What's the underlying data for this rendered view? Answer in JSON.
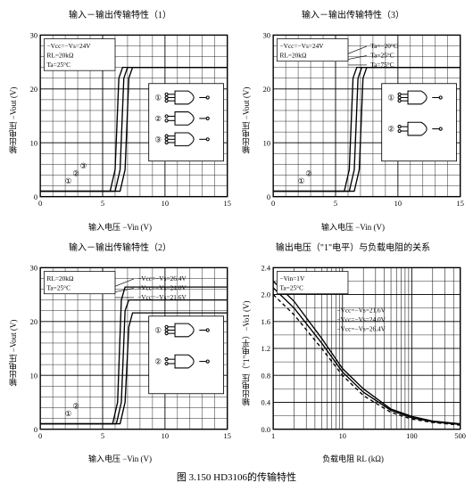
{
  "caption": "图 3.150   HD3106的传输特性",
  "panels": [
    {
      "title": "输入－输出传输特性（1）",
      "xlabel": "输入电压 −Vin (V)",
      "ylabel": "输出电压 −Vout (V)",
      "xlim": [
        0,
        15
      ],
      "xtick_step": 5,
      "ylim": [
        0,
        30
      ],
      "ytick_step": 10,
      "grid_color": "#000000",
      "axis_color": "#000000",
      "bg": "#ffffff",
      "cond_lines": [
        "−Vcc=−Vs=24V",
        "RL=20kΩ",
        "Ta=25°C"
      ],
      "notes": [
        "①",
        "②",
        "③"
      ],
      "curves": [
        {
          "label": "①",
          "pts": [
            [
              0,
              1
            ],
            [
              5.6,
              1
            ],
            [
              6.0,
              5
            ],
            [
              6.3,
              22
            ],
            [
              6.6,
              24
            ],
            [
              15,
              24
            ]
          ]
        },
        {
          "label": "②",
          "pts": [
            [
              0,
              1
            ],
            [
              6.0,
              1
            ],
            [
              6.4,
              5
            ],
            [
              6.7,
              22
            ],
            [
              7.0,
              24
            ],
            [
              15,
              24
            ]
          ]
        },
        {
          "label": "③",
          "pts": [
            [
              0,
              1
            ],
            [
              6.4,
              1
            ],
            [
              6.8,
              5
            ],
            [
              7.1,
              22
            ],
            [
              7.4,
              24
            ],
            [
              15,
              24
            ]
          ]
        }
      ],
      "gates": [
        {
          "type": "and3",
          "y": 22,
          "label": "①"
        },
        {
          "type": "andor",
          "y": 16,
          "label": "②"
        },
        {
          "type": "or3",
          "y": 10,
          "label": "③"
        }
      ]
    },
    {
      "title": "输入－输出传输特性（3）",
      "xlabel": "输入电压 −Vin (V)",
      "ylabel": "输出电压 −Vout (V)",
      "xlim": [
        0,
        15
      ],
      "xtick_step": 5,
      "ylim": [
        0,
        30
      ],
      "ytick_step": 10,
      "grid_color": "#000000",
      "axis_color": "#000000",
      "bg": "#ffffff",
      "cond_lines": [
        "−Vcc=−Vs=24V",
        "RL=20kΩ"
      ],
      "temp_lines": [
        "Ta=−20°C",
        "Ta=25°C",
        "Ta=75°C"
      ],
      "notes": [
        "①",
        "②"
      ],
      "curves": [
        {
          "label": "−20",
          "pts": [
            [
              0,
              1
            ],
            [
              5.7,
              1
            ],
            [
              6.1,
              5
            ],
            [
              6.4,
              22
            ],
            [
              6.7,
              24
            ],
            [
              15,
              24
            ]
          ]
        },
        {
          "label": "25",
          "pts": [
            [
              0,
              1
            ],
            [
              6.1,
              1
            ],
            [
              6.5,
              5
            ],
            [
              6.8,
              22
            ],
            [
              7.1,
              24
            ],
            [
              15,
              24
            ]
          ]
        },
        {
          "label": "75",
          "pts": [
            [
              0,
              1
            ],
            [
              6.5,
              1
            ],
            [
              6.9,
              5
            ],
            [
              7.2,
              22
            ],
            [
              7.5,
              24
            ],
            [
              15,
              24
            ]
          ]
        }
      ],
      "gates": [
        {
          "type": "and3",
          "y": 21,
          "label": "①"
        },
        {
          "type": "andor",
          "y": 15,
          "label": "②"
        }
      ]
    },
    {
      "title": "输入－输出传输特性（2）",
      "xlabel": "输入电压 −Vin (V)",
      "ylabel": "输出电压 −Vout (V)",
      "xlim": [
        0,
        15
      ],
      "xtick_step": 5,
      "ylim": [
        0,
        30
      ],
      "ytick_step": 10,
      "grid_color": "#000000",
      "axis_color": "#000000",
      "bg": "#ffffff",
      "cond_lines": [
        "RL=20kΩ",
        "Ta=25°C"
      ],
      "vcc_lines": [
        "−Vcc=−Vs=26.4V",
        "−Vcc=−Vs=24.0V",
        "−Vcc=−Vs=21.6V"
      ],
      "notes": [
        "①",
        "②"
      ],
      "curves": [
        {
          "label": "26.4",
          "pts": [
            [
              0,
              1
            ],
            [
              5.8,
              1
            ],
            [
              6.2,
              5
            ],
            [
              6.5,
              24
            ],
            [
              6.8,
              26.4
            ],
            [
              15,
              26.4
            ]
          ]
        },
        {
          "label": "24.0",
          "pts": [
            [
              0,
              1
            ],
            [
              6.1,
              1
            ],
            [
              6.5,
              5
            ],
            [
              6.8,
              22
            ],
            [
              7.1,
              24
            ],
            [
              15,
              24
            ]
          ]
        },
        {
          "label": "21.6",
          "pts": [
            [
              0,
              1
            ],
            [
              6.4,
              1
            ],
            [
              6.8,
              5
            ],
            [
              7.1,
              19
            ],
            [
              7.4,
              21.6
            ],
            [
              15,
              21.6
            ]
          ]
        }
      ],
      "gates": [
        {
          "type": "and3",
          "y": 14,
          "label": "①"
        },
        {
          "type": "andor",
          "y": 8,
          "label": "②"
        }
      ]
    },
    {
      "title": "输出电压（\"1\"电平）与负载电阻的关系",
      "xlabel": "负载电阻 RL (kΩ)",
      "ylabel": "输出电压（\"1\"电平）−Vo1 (V)",
      "xlim": [
        1,
        500
      ],
      "xscale": "log",
      "ylim": [
        0,
        2.4
      ],
      "ytick_step": 0.4,
      "grid_color": "#000000",
      "axis_color": "#000000",
      "bg": "#ffffff",
      "cond_lines": [
        "−Vin=1V",
        "Ta=25°C"
      ],
      "vcc_lines": [
        "−Vcc=−Vs=21.6V",
        "−Vcc=−Vs=24.0V",
        "−Vcc=−Vs=26.4V"
      ],
      "curves": [
        {
          "label": "21.6",
          "dash": "4,3",
          "pts": [
            [
              1,
              2.0
            ],
            [
              2,
              1.7
            ],
            [
              5,
              1.2
            ],
            [
              10,
              0.8
            ],
            [
              20,
              0.5
            ],
            [
              50,
              0.25
            ],
            [
              100,
              0.15
            ],
            [
              200,
              0.1
            ],
            [
              500,
              0.06
            ]
          ]
        },
        {
          "label": "24.0",
          "pts": [
            [
              1,
              2.1
            ],
            [
              2,
              1.8
            ],
            [
              5,
              1.28
            ],
            [
              10,
              0.85
            ],
            [
              20,
              0.55
            ],
            [
              50,
              0.28
            ],
            [
              100,
              0.17
            ],
            [
              200,
              0.11
            ],
            [
              500,
              0.07
            ]
          ]
        },
        {
          "label": "26.4",
          "pts": [
            [
              1,
              2.2
            ],
            [
              2,
              1.9
            ],
            [
              5,
              1.35
            ],
            [
              10,
              0.9
            ],
            [
              20,
              0.6
            ],
            [
              50,
              0.3
            ],
            [
              100,
              0.19
            ],
            [
              200,
              0.12
            ],
            [
              500,
              0.08
            ]
          ]
        }
      ],
      "log_majors": [
        1,
        10,
        100,
        500
      ],
      "log_minors": [
        2,
        3,
        4,
        5,
        6,
        7,
        8,
        9,
        20,
        30,
        40,
        50,
        60,
        70,
        80,
        90,
        200,
        300,
        400
      ]
    }
  ]
}
